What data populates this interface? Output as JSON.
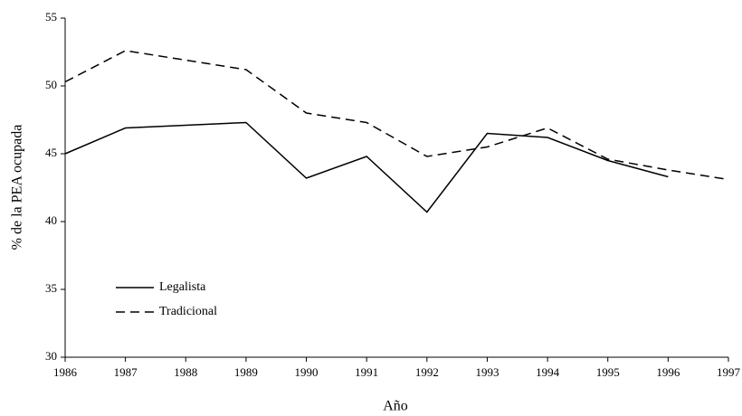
{
  "chart_data": {
    "type": "line",
    "x_label": "Año",
    "y_label": "% de la PEA ocupada",
    "x": [
      1986,
      1987,
      1989,
      1990,
      1991,
      1992,
      1993,
      1994,
      1995,
      1996,
      1997
    ],
    "series": [
      {
        "name": "Legalista",
        "color": "#000000",
        "dash": "solid",
        "values": [
          45.0,
          46.9,
          47.3,
          43.2,
          44.8,
          40.7,
          46.5,
          46.2,
          44.5,
          43.3,
          null
        ]
      },
      {
        "name": "Tradicional",
        "color": "#000000",
        "dash": "dashed",
        "values": [
          50.3,
          52.6,
          51.2,
          48.0,
          47.3,
          44.8,
          45.5,
          46.9,
          44.6,
          43.8,
          43.1
        ]
      }
    ],
    "xlim": [
      1986,
      1997
    ],
    "xticks": [
      1986,
      1987,
      1988,
      1989,
      1990,
      1991,
      1992,
      1993,
      1994,
      1995,
      1996,
      1997
    ],
    "ylim": [
      30,
      55
    ],
    "yticks": [
      30,
      35,
      40,
      45,
      50,
      55
    ],
    "grid": false,
    "legend": "lower left"
  }
}
